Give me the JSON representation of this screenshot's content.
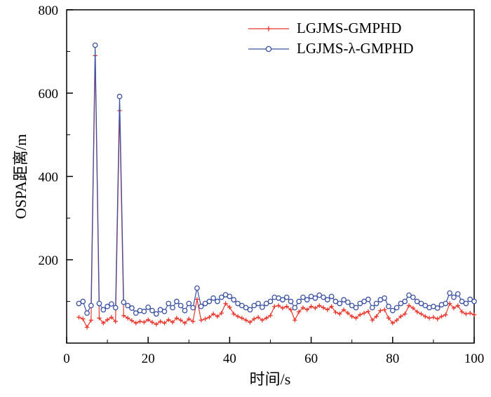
{
  "chart_data": {
    "type": "line",
    "title": "",
    "xlabel": "时间/s",
    "ylabel": "OSPA距离/m",
    "xlim": [
      0,
      100
    ],
    "ylim": [
      0,
      800
    ],
    "x_ticks": [
      0,
      20,
      40,
      60,
      80,
      100
    ],
    "y_ticks": [
      200,
      400,
      600,
      800
    ],
    "x_minor_step": 10,
    "y_minor_step": 100,
    "grid": false,
    "legend_position": "top-center-inside",
    "x": [
      3,
      4,
      5,
      6,
      7,
      8,
      9,
      10,
      11,
      12,
      13,
      14,
      15,
      16,
      17,
      18,
      19,
      20,
      21,
      22,
      23,
      24,
      25,
      26,
      27,
      28,
      29,
      30,
      31,
      32,
      33,
      34,
      35,
      36,
      37,
      38,
      39,
      40,
      41,
      42,
      43,
      44,
      45,
      46,
      47,
      48,
      49,
      50,
      51,
      52,
      53,
      54,
      55,
      56,
      57,
      58,
      59,
      60,
      61,
      62,
      63,
      64,
      65,
      66,
      67,
      68,
      69,
      70,
      71,
      72,
      73,
      74,
      75,
      76,
      77,
      78,
      79,
      80,
      81,
      82,
      83,
      84,
      85,
      86,
      87,
      88,
      89,
      90,
      91,
      92,
      93,
      94,
      95,
      96,
      97,
      98,
      99,
      100
    ],
    "series": [
      {
        "name": "LGJMS-GMPHD",
        "color": "#e8372d",
        "marker": "plus",
        "values": [
          62,
          58,
          38,
          55,
          690,
          60,
          48,
          56,
          62,
          52,
          558,
          66,
          60,
          54,
          48,
          52,
          50,
          56,
          50,
          45,
          52,
          48,
          56,
          50,
          60,
          55,
          48,
          58,
          52,
          105,
          55,
          58,
          62,
          70,
          64,
          72,
          95,
          86,
          70,
          64,
          60,
          55,
          50,
          58,
          62,
          55,
          60,
          66,
          88,
          90,
          84,
          88,
          80,
          55,
          75,
          85,
          80,
          88,
          84,
          90,
          85,
          80,
          88,
          74,
          70,
          80,
          72,
          64,
          60,
          68,
          72,
          76,
          55,
          64,
          78,
          80,
          60,
          48,
          55,
          64,
          70,
          90,
          84,
          75,
          70,
          64,
          60,
          62,
          58,
          64,
          68,
          95,
          84,
          90,
          75,
          70,
          72,
          68
        ]
      },
      {
        "name": "LGJMS-λ-GMPHD",
        "color": "#3a51a3",
        "marker": "circle",
        "values": [
          95,
          100,
          72,
          90,
          715,
          95,
          80,
          88,
          94,
          85,
          592,
          98,
          90,
          84,
          72,
          78,
          76,
          86,
          78,
          70,
          80,
          76,
          95,
          85,
          100,
          90,
          78,
          95,
          85,
          132,
          88,
          95,
          100,
          108,
          100,
          110,
          116,
          112,
          104,
          95,
          90,
          85,
          80,
          90,
          95,
          86,
          95,
          100,
          110,
          108,
          104,
          110,
          100,
          85,
          100,
          110,
          104,
          112,
          108,
          115,
          110,
          104,
          112,
          100,
          95,
          104,
          98,
          90,
          85,
          95,
          100,
          105,
          85,
          95,
          104,
          108,
          88,
          78,
          85,
          95,
          100,
          115,
          110,
          100,
          95,
          90,
          85,
          88,
          84,
          92,
          95,
          120,
          110,
          118,
          100,
          95,
          105,
          100
        ]
      }
    ]
  }
}
